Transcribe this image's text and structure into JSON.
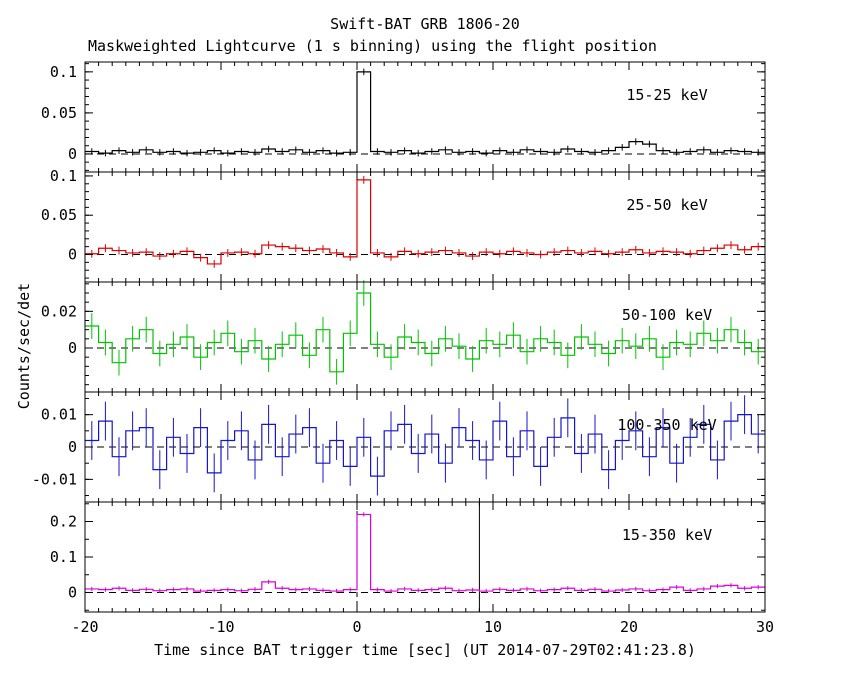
{
  "figure": {
    "title": "Swift-BAT GRB 1806-20",
    "subtitle": "Maskweighted Lightcurve (1 s binning) using the flight position",
    "xlabel": "Time since BAT trigger time [sec] (UT 2014-07-29T02:41:23.8)",
    "ylabel": "Counts/sec/det"
  },
  "chart_data": {
    "type": "line",
    "style": "step-histogram lightcurves with error bars, 5 stacked panels sharing the time axis",
    "x_start": -20,
    "bin_width": 1,
    "xlim": [
      -20,
      30
    ],
    "xticks": [
      -20,
      -10,
      0,
      10,
      20,
      30
    ],
    "xtick_labels": [
      "-20",
      "-10",
      "0",
      "10",
      "20",
      "30"
    ],
    "x_minor_step": 1,
    "zero_line": "dashed horizontal line at y=0 in every panel",
    "panels": [
      {
        "name": "15-25 keV",
        "color": "#000000",
        "ylim": [
          -0.022,
          0.112
        ],
        "yticks": [
          {
            "v": 0,
            "label": "0"
          },
          {
            "v": 0.05,
            "label": "0.05"
          },
          {
            "v": 0.1,
            "label": "0.1"
          }
        ],
        "y_minor_step": 0.01,
        "yerr": 0.004,
        "values": [
          0.003,
          0.001,
          0.004,
          0.002,
          0.005,
          0.002,
          0.003,
          0.001,
          0.002,
          0.004,
          0.001,
          0.003,
          0.002,
          0.006,
          0.003,
          0.005,
          0.002,
          0.004,
          0.001,
          0.002,
          0.1,
          0.003,
          0.002,
          0.004,
          0.001,
          0.003,
          0.005,
          0.002,
          0.003,
          0.001,
          0.004,
          0.002,
          0.005,
          0.003,
          0.002,
          0.006,
          0.003,
          0.002,
          0.004,
          0.008,
          0.015,
          0.012,
          0.004,
          0.002,
          0.003,
          0.005,
          0.002,
          0.004,
          0.003,
          0.002
        ],
        "vlines": []
      },
      {
        "name": "25-50 keV",
        "color": "#dd0000",
        "ylim": [
          -0.035,
          0.105
        ],
        "yticks": [
          {
            "v": 0,
            "label": "0"
          },
          {
            "v": 0.05,
            "label": "0.05"
          },
          {
            "v": 0.1,
            "label": "0.1"
          }
        ],
        "y_minor_step": 0.01,
        "yerr": 0.005,
        "values": [
          0.001,
          0.008,
          0.005,
          0.002,
          0.003,
          -0.002,
          0.001,
          0.004,
          -0.004,
          -0.012,
          0.002,
          0.003,
          0.001,
          0.012,
          0.01,
          0.008,
          0.005,
          0.007,
          0.002,
          -0.003,
          0.095,
          0.002,
          -0.003,
          0.004,
          0.001,
          0.003,
          0.005,
          0.002,
          -0.002,
          0.003,
          0.001,
          0.004,
          0.002,
          0.0,
          0.003,
          0.005,
          0.002,
          0.004,
          0.001,
          0.003,
          0.006,
          0.002,
          0.004,
          0.003,
          0.001,
          0.005,
          0.008,
          0.012,
          0.006,
          0.01
        ],
        "vlines": []
      },
      {
        "name": "50-100 keV",
        "color": "#00c400",
        "ylim": [
          -0.024,
          0.036
        ],
        "yticks": [
          {
            "v": 0,
            "label": "0"
          },
          {
            "v": 0.02,
            "label": "0.02"
          }
        ],
        "y_minor_step": 0.005,
        "yerr": 0.007,
        "values": [
          0.012,
          0.003,
          -0.008,
          0.005,
          0.01,
          -0.003,
          0.002,
          0.006,
          -0.005,
          0.003,
          0.008,
          -0.002,
          0.004,
          -0.006,
          0.002,
          0.007,
          -0.004,
          0.01,
          -0.013,
          0.008,
          0.03,
          0.002,
          -0.005,
          0.006,
          0.003,
          -0.003,
          0.005,
          0.001,
          -0.006,
          0.004,
          0.002,
          0.007,
          -0.002,
          0.005,
          0.003,
          -0.004,
          0.006,
          0.002,
          -0.003,
          0.004,
          0.001,
          0.005,
          -0.005,
          0.003,
          0.002,
          0.008,
          0.004,
          0.01,
          0.003,
          -0.002
        ],
        "vlines": []
      },
      {
        "name": "100-350 keV",
        "color": "#1515cc",
        "ylim": [
          -0.017,
          0.017
        ],
        "yticks": [
          {
            "v": -0.01,
            "label": "-0.01"
          },
          {
            "v": 0,
            "label": "0"
          },
          {
            "v": 0.01,
            "label": "0.01"
          }
        ],
        "y_minor_step": 0.005,
        "yerr": 0.006,
        "values": [
          0.002,
          0.008,
          -0.003,
          0.005,
          0.006,
          -0.007,
          0.003,
          -0.002,
          0.006,
          -0.008,
          0.002,
          0.005,
          -0.004,
          0.007,
          -0.003,
          0.004,
          0.006,
          -0.005,
          0.002,
          -0.006,
          0.003,
          -0.009,
          0.005,
          0.007,
          -0.002,
          0.004,
          -0.005,
          0.006,
          0.002,
          -0.004,
          0.008,
          -0.003,
          0.005,
          -0.006,
          0.003,
          0.009,
          -0.002,
          0.004,
          -0.007,
          0.002,
          0.005,
          -0.003,
          0.006,
          -0.005,
          0.003,
          0.007,
          -0.004,
          0.008,
          0.01,
          0.004
        ],
        "vlines": []
      },
      {
        "name": "15-350 keV",
        "color": "#dd00dd",
        "ylim": [
          -0.055,
          0.255
        ],
        "yticks": [
          {
            "v": 0,
            "label": "0"
          },
          {
            "v": 0.1,
            "label": "0.1"
          },
          {
            "v": 0.2,
            "label": "0.2"
          }
        ],
        "y_minor_step": 0.05,
        "yerr": 0.006,
        "values": [
          0.01,
          0.008,
          0.012,
          0.006,
          0.009,
          0.005,
          0.008,
          0.01,
          0.004,
          0.006,
          0.008,
          0.005,
          0.009,
          0.03,
          0.012,
          0.008,
          0.01,
          0.006,
          0.004,
          0.008,
          0.22,
          0.008,
          0.004,
          0.01,
          0.006,
          0.008,
          0.012,
          0.005,
          0.007,
          0.004,
          0.009,
          0.006,
          0.01,
          0.005,
          0.008,
          0.012,
          0.006,
          0.009,
          0.004,
          0.007,
          0.01,
          0.005,
          0.008,
          0.015,
          0.006,
          0.01,
          0.018,
          0.02,
          0.012,
          0.015
        ],
        "vlines": [
          {
            "x": 0,
            "style": "dashed"
          },
          {
            "x": 9,
            "style": "solid"
          }
        ]
      }
    ]
  }
}
